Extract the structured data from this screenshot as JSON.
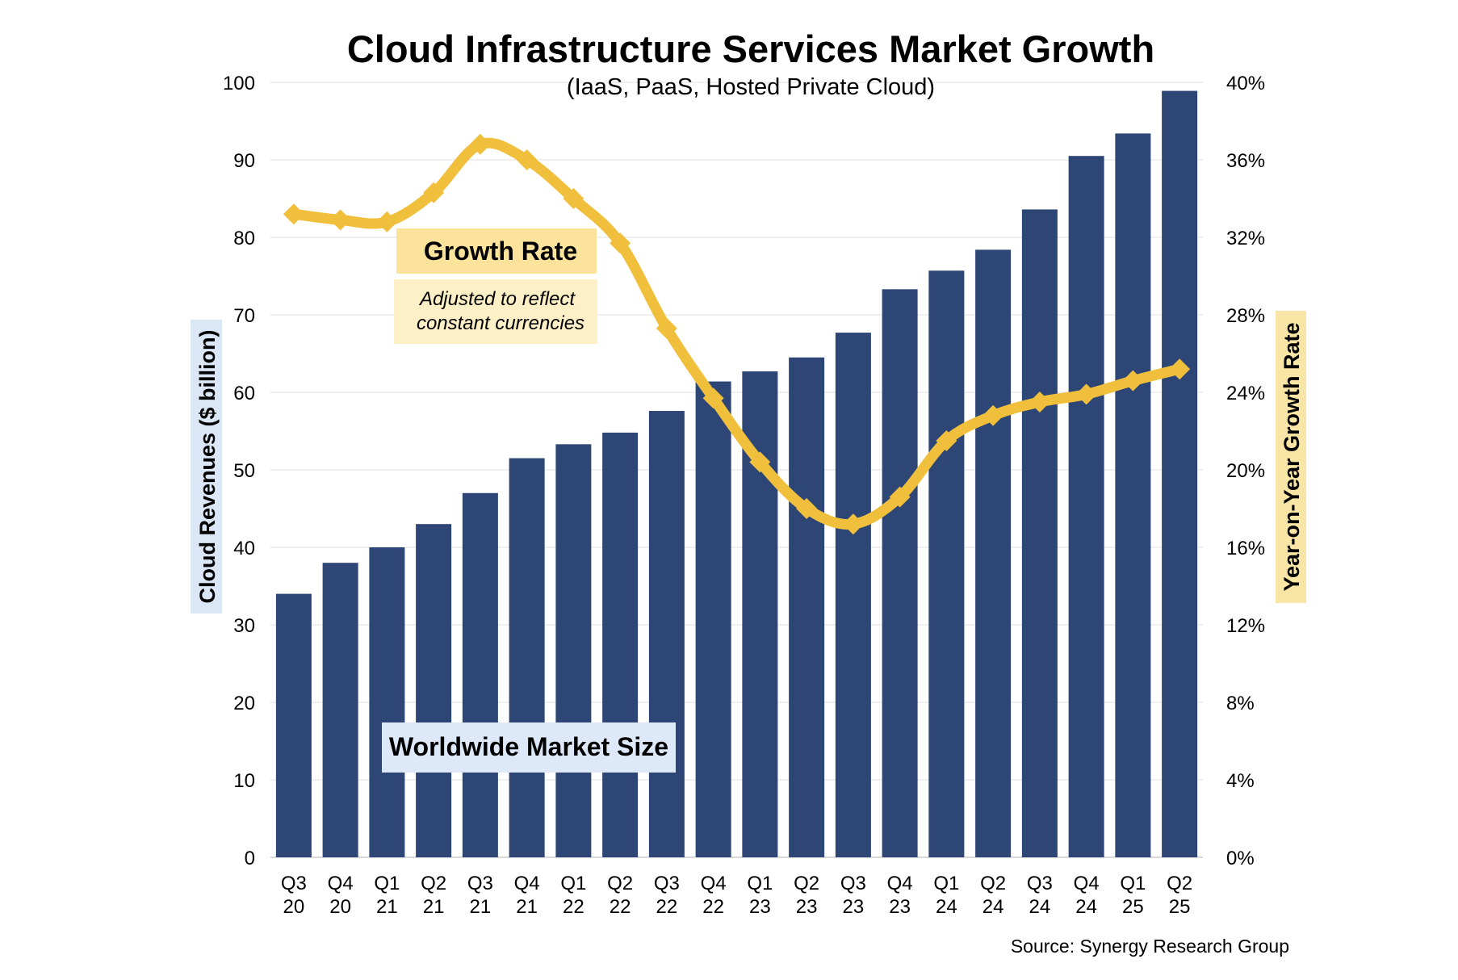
{
  "chart_data": {
    "type": "bar",
    "title": "Cloud Infrastructure Services Market Growth",
    "subtitle": "(IaaS, PaaS, Hosted Private Cloud)",
    "categories": [
      [
        "Q3",
        "20"
      ],
      [
        "Q4",
        "20"
      ],
      [
        "Q1",
        "21"
      ],
      [
        "Q2",
        "21"
      ],
      [
        "Q3",
        "21"
      ],
      [
        "Q4",
        "21"
      ],
      [
        "Q1",
        "22"
      ],
      [
        "Q2",
        "22"
      ],
      [
        "Q3",
        "22"
      ],
      [
        "Q4",
        "22"
      ],
      [
        "Q1",
        "23"
      ],
      [
        "Q2",
        "23"
      ],
      [
        "Q3",
        "23"
      ],
      [
        "Q4",
        "23"
      ],
      [
        "Q1",
        "24"
      ],
      [
        "Q2",
        "24"
      ],
      [
        "Q3",
        "24"
      ],
      [
        "Q4",
        "24"
      ],
      [
        "Q1",
        "25"
      ],
      [
        "Q2",
        "25"
      ]
    ],
    "series": [
      {
        "name": "Worldwide Market Size",
        "kind": "bar",
        "axis": "left",
        "color": "#2d4675",
        "values": [
          34,
          38,
          40,
          43,
          47,
          51.5,
          53.3,
          54.8,
          57.6,
          61.4,
          62.7,
          64.5,
          67.7,
          73.3,
          75.7,
          78.4,
          83.6,
          90.5,
          93.4,
          98.9
        ]
      },
      {
        "name": "Growth Rate",
        "kind": "line",
        "axis": "right",
        "color": "#f0c03c",
        "values": [
          33.2,
          32.9,
          32.8,
          34.3,
          36.8,
          36.0,
          34.0,
          31.7,
          27.3,
          23.7,
          20.4,
          18.0,
          17.2,
          18.6,
          21.5,
          22.8,
          23.5,
          23.9,
          24.6,
          25.2
        ]
      }
    ],
    "y_left": {
      "label": "Cloud Revenues ($ billion)",
      "ylim": [
        0,
        100
      ],
      "ticks": [
        "0",
        "10",
        "20",
        "30",
        "40",
        "50",
        "60",
        "70",
        "80",
        "90",
        "100"
      ]
    },
    "y_right": {
      "label": "Year-on-Year Growth Rate",
      "ylim": [
        0,
        40
      ],
      "ticks": [
        "0%",
        "4%",
        "8%",
        "12%",
        "16%",
        "20%",
        "24%",
        "28%",
        "32%",
        "36%",
        "40%"
      ]
    },
    "grid": true,
    "annotations": {
      "growth_title": "Growth Rate",
      "growth_note_line1": "Adjusted to reflect",
      "growth_note_line2": "constant currencies",
      "market_label": "Worldwide Market Size"
    },
    "source": "Source: Synergy Research Group",
    "colors": {
      "left_label_bg": "#dbe7f6",
      "right_label_bg": "#f9e6a6",
      "growth_title_bg": "#fbe39b",
      "growth_note_bg": "#fdf0c6",
      "market_label_bg": "#dde9f8",
      "grid": "#e7e7e7"
    }
  }
}
